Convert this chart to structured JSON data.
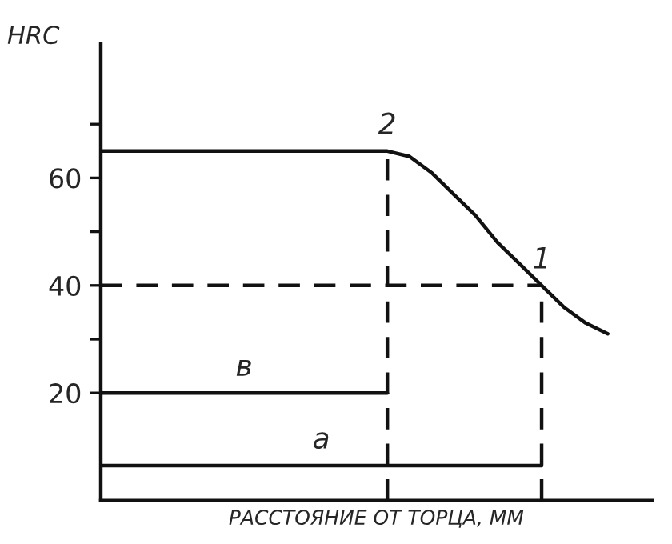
{
  "chart_data": {
    "type": "line",
    "xlabel": "РАССТОЯНИЕ ОТ ТОРЦА, ММ",
    "ylabel": "HRC",
    "categories": [
      null,
      null,
      null,
      null,
      null,
      null,
      null,
      null,
      null,
      null,
      null,
      null,
      null,
      null,
      null,
      null,
      null,
      null,
      null,
      null,
      null,
      null,
      null,
      null,
      null,
      null
    ],
    "ylim": [
      0,
      85
    ],
    "yticks": [
      20,
      {
        "value": 30,
        "label": null
      },
      40,
      {
        "value": 50,
        "label": null
      },
      60,
      {
        "value": 70,
        "label": null
      }
    ],
    "tick_labels": "y",
    "series": [
      {
        "color": "#111111",
        "line_style": "solid",
        "values": [
          65,
          65,
          65,
          65,
          65,
          65,
          65,
          65,
          65,
          65,
          65,
          65,
          65,
          65,
          64,
          61,
          57,
          53,
          48,
          44,
          40,
          36,
          33,
          31,
          null,
          null
        ]
      },
      {
        "color": "#111111",
        "line_style": "dashed",
        "values": [
          40,
          40,
          40,
          40,
          40,
          40,
          40,
          40,
          40,
          40,
          40,
          40,
          40,
          40,
          40,
          40,
          40,
          40,
          40,
          40,
          40,
          null,
          null,
          null,
          null,
          null
        ]
      },
      {
        "color": "#111111",
        "line_style": "solid",
        "values": [
          20,
          20,
          20,
          20,
          20,
          20,
          20,
          20,
          20,
          20,
          20,
          20,
          20,
          20,
          null,
          null,
          null,
          null,
          null,
          null,
          null,
          null,
          null,
          null,
          null,
          null
        ]
      },
      {
        "color": "#111111",
        "line_style": "solid",
        "values": [
          6.5,
          6.5,
          6.5,
          6.5,
          6.5,
          6.5,
          6.5,
          6.5,
          6.5,
          6.5,
          6.5,
          6.5,
          6.5,
          6.5,
          6.5,
          6.5,
          6.5,
          6.5,
          6.5,
          6.5,
          6.5,
          null,
          null,
          null,
          null,
          null
        ]
      }
    ],
    "annotations": [
      {
        "text": "2",
        "y": 65
      },
      {
        "text": "1",
        "y": 40
      },
      {
        "text": "в",
        "y": 20
      },
      {
        "text": "а",
        "y": 6.5
      }
    ]
  }
}
